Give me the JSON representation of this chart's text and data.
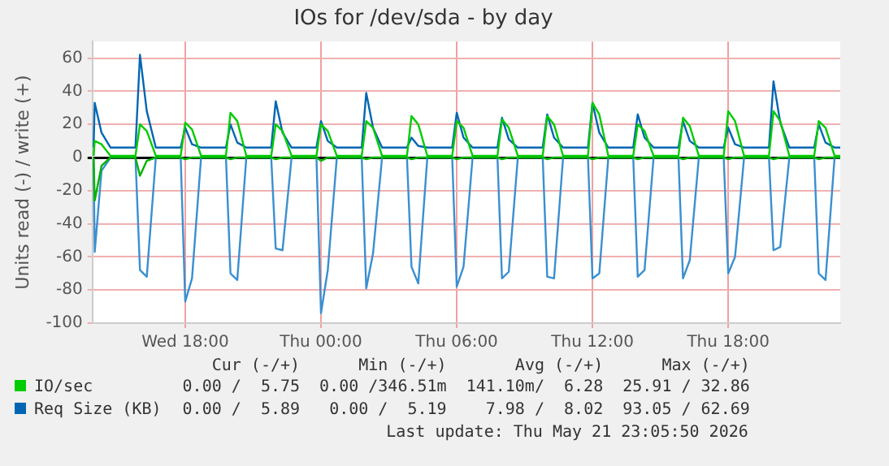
{
  "chart_data": {
    "type": "line",
    "title": "IOs for /dev/sda - by day",
    "ylabel": "Units read (-) / write (+)",
    "x": [
      "2026-05-20T13:57",
      "2026-05-20T14:00",
      "2026-05-20T14:18",
      "2026-05-20T14:42",
      "2026-05-20T15:48",
      "2026-05-20T16:00",
      "2026-05-20T16:18",
      "2026-05-20T16:42",
      "2026-05-20T17:48",
      "2026-05-20T18:00",
      "2026-05-20T18:18",
      "2026-05-20T18:42",
      "2026-05-20T19:48",
      "2026-05-20T20:00",
      "2026-05-20T20:18",
      "2026-05-20T20:42",
      "2026-05-20T21:48",
      "2026-05-20T22:00",
      "2026-05-20T22:18",
      "2026-05-20T22:42",
      "2026-05-20T23:48",
      "2026-05-21T00:00",
      "2026-05-21T00:18",
      "2026-05-21T00:42",
      "2026-05-21T01:48",
      "2026-05-21T02:00",
      "2026-05-21T02:18",
      "2026-05-21T02:42",
      "2026-05-21T03:48",
      "2026-05-21T04:00",
      "2026-05-21T04:18",
      "2026-05-21T04:42",
      "2026-05-21T05:48",
      "2026-05-21T06:00",
      "2026-05-21T06:18",
      "2026-05-21T06:42",
      "2026-05-21T07:48",
      "2026-05-21T08:00",
      "2026-05-21T08:18",
      "2026-05-21T08:42",
      "2026-05-21T09:48",
      "2026-05-21T10:00",
      "2026-05-21T10:18",
      "2026-05-21T10:42",
      "2026-05-21T11:48",
      "2026-05-21T12:00",
      "2026-05-21T12:18",
      "2026-05-21T12:42",
      "2026-05-21T13:48",
      "2026-05-21T14:00",
      "2026-05-21T14:18",
      "2026-05-21T14:42",
      "2026-05-21T15:48",
      "2026-05-21T16:00",
      "2026-05-21T16:18",
      "2026-05-21T16:42",
      "2026-05-21T17:48",
      "2026-05-21T18:00",
      "2026-05-21T18:18",
      "2026-05-21T18:42",
      "2026-05-21T19:48",
      "2026-05-21T20:00",
      "2026-05-21T20:18",
      "2026-05-21T20:42",
      "2026-05-21T21:48",
      "2026-05-21T22:00",
      "2026-05-21T22:18",
      "2026-05-21T22:42",
      "2026-05-21T22:57"
    ],
    "series": [
      {
        "color": "#00b400",
        "values": [
          0,
          -26,
          -5,
          0,
          0,
          -11,
          -2,
          0,
          0,
          -1,
          0,
          0,
          0,
          -1,
          0,
          0,
          0,
          -1,
          0,
          0,
          0,
          -2,
          0,
          0,
          0,
          -1,
          0,
          0,
          0,
          -1,
          0,
          0,
          0,
          -1,
          0,
          0,
          0,
          -1,
          0,
          0,
          0,
          -1,
          0,
          0,
          0,
          -1,
          0,
          0,
          0,
          -1,
          0,
          0,
          0,
          -1,
          0,
          0,
          0,
          -1,
          0,
          0,
          0,
          -1,
          0,
          0,
          0,
          -1,
          0,
          0,
          0
        ]
      },
      {
        "name": "IO/sec",
        "color": "#00cc00",
        "values": [
          1,
          10,
          8,
          1,
          1,
          20,
          16,
          1,
          1,
          21,
          17,
          1,
          1,
          27,
          22,
          1,
          1,
          20,
          16,
          1,
          1,
          20,
          16,
          1,
          1,
          22,
          18,
          1,
          1,
          25,
          20,
          1,
          1,
          22,
          18,
          1,
          1,
          23,
          18,
          1,
          1,
          25,
          20,
          1,
          1,
          33,
          26,
          1,
          1,
          20,
          16,
          1,
          1,
          24,
          19,
          1,
          1,
          28,
          22,
          1,
          1,
          28,
          22,
          1,
          1,
          22,
          18,
          1,
          1
        ]
      },
      {
        "color": "#3a8fd0",
        "values": [
          0,
          -57,
          -8,
          0,
          0,
          -68,
          -72,
          0,
          0,
          -87,
          -73,
          0,
          0,
          -70,
          -74,
          0,
          0,
          -55,
          -56,
          0,
          0,
          -94,
          -68,
          0,
          0,
          -79,
          -58,
          0,
          0,
          -66,
          -76,
          0,
          0,
          -78,
          -66,
          0,
          0,
          -73,
          -69,
          0,
          0,
          -72,
          -73,
          0,
          0,
          -73,
          -70,
          0,
          0,
          -72,
          -68,
          0,
          0,
          -73,
          -62,
          0,
          0,
          -70,
          -60,
          0,
          0,
          -56,
          -54,
          0,
          0,
          -70,
          -74,
          0,
          0
        ]
      },
      {
        "name": "Req Size (KB)",
        "color": "#0066b3",
        "values": [
          6,
          33,
          15,
          6,
          6,
          62,
          28,
          6,
          6,
          18,
          8,
          6,
          6,
          20,
          9,
          6,
          6,
          34,
          15,
          6,
          6,
          22,
          10,
          6,
          6,
          39,
          18,
          6,
          6,
          12,
          7,
          6,
          6,
          27,
          12,
          6,
          6,
          24,
          11,
          6,
          6,
          26,
          12,
          6,
          6,
          33,
          15,
          6,
          6,
          26,
          12,
          6,
          6,
          22,
          10,
          6,
          6,
          18,
          8,
          6,
          6,
          46,
          21,
          6,
          6,
          20,
          9,
          6,
          6
        ]
      }
    ],
    "xlim": [
      "2026-05-20T13:54",
      "2026-05-21T22:57"
    ],
    "xticks": [
      {
        "value": "2026-05-20T18:00",
        "label": "Wed 18:00"
      },
      {
        "value": "2026-05-21T00:00",
        "label": "Thu 00:00"
      },
      {
        "value": "2026-05-21T06:00",
        "label": "Thu 06:00"
      },
      {
        "value": "2026-05-21T12:00",
        "label": "Thu 12:00"
      },
      {
        "value": "2026-05-21T18:00",
        "label": "Thu 18:00"
      }
    ],
    "ylim": [
      -100,
      70
    ],
    "yticks": [
      -100,
      -80,
      -60,
      -40,
      -20,
      0,
      20,
      40,
      60
    ],
    "grid": true,
    "legend": "bottom",
    "marker": "none",
    "line_style": "solid",
    "annotations": [
      "Cur (-/+)",
      "Min (-/+)",
      "Avg (-/+)",
      "Max (-/+)",
      "0.00 /  5.75",
      "0.00 /346.51m",
      "141.10m/  6.28",
      "25.91 / 32.86",
      "0.00 /  5.89",
      "0.00 /  5.19",
      "7.98 /  8.02",
      "93.05 / 62.69",
      "Last update: Thu May 21 23:05:50 2026"
    ]
  }
}
